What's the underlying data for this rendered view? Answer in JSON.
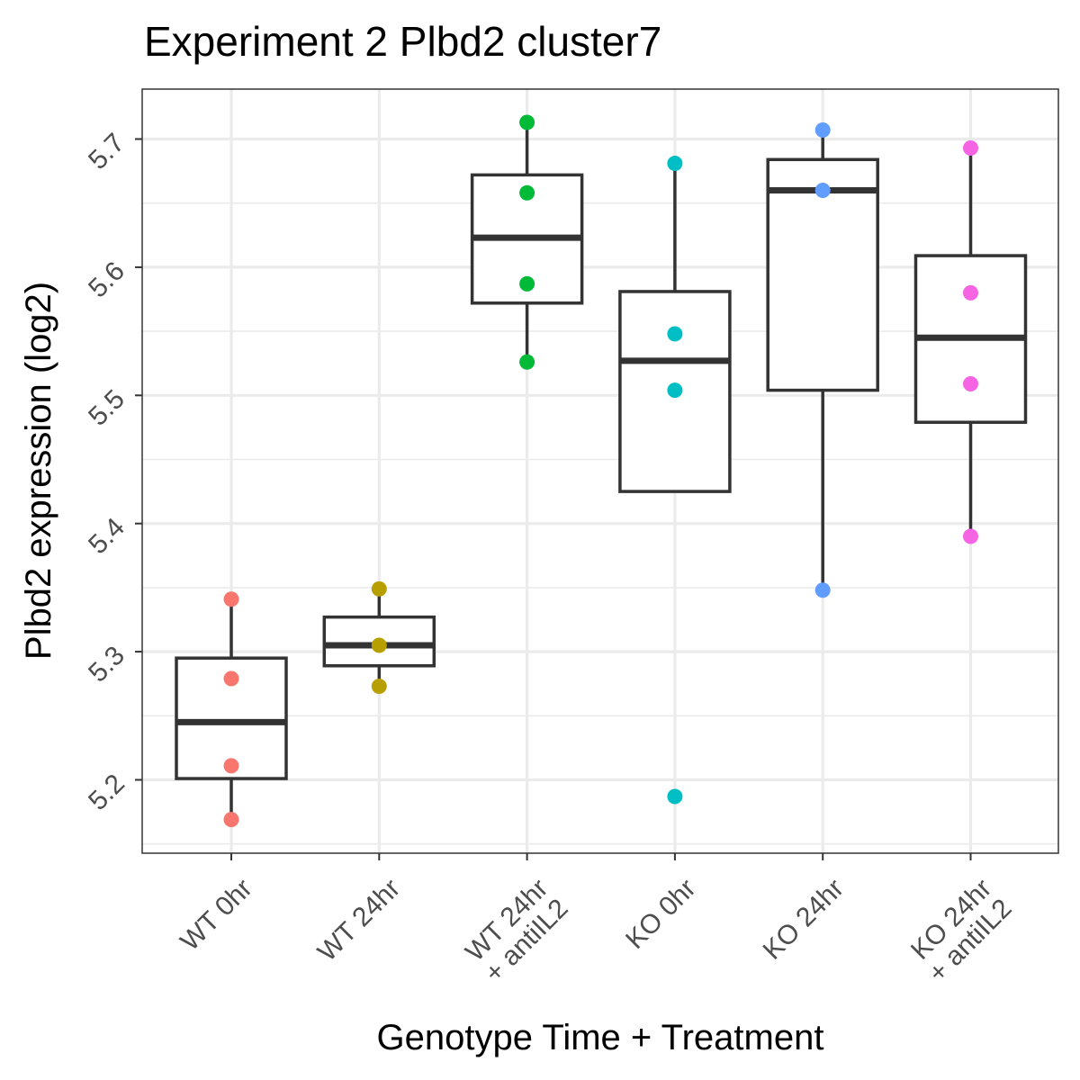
{
  "chart_data": {
    "type": "box",
    "title": "Experiment 2 Plbd2 cluster7",
    "xlabel": "Genotype Time + Treatment",
    "ylabel": "Plbd2 expression (log2)",
    "ylim": [
      5.14,
      5.74
    ],
    "y_ticks": [
      5.2,
      5.3,
      5.4,
      5.5,
      5.6,
      5.7
    ],
    "y_tick_labels": [
      "5.2",
      "5.3",
      "5.4",
      "5.5",
      "5.6",
      "5.7"
    ],
    "grid": true,
    "legend": "none",
    "categories": [
      [
        "WT 0hr"
      ],
      [
        "WT 24hr"
      ],
      [
        "WT 24hr",
        "+ antiIL2"
      ],
      [
        "KO 0hr"
      ],
      [
        "KO 24hr"
      ],
      [
        "KO 24hr",
        "+ antiIL2"
      ]
    ],
    "groups": [
      {
        "color": "#F8766D",
        "box": {
          "lower_whisker": 5.17,
          "q1": 5.201,
          "median": 5.245,
          "q3": 5.295,
          "upper_whisker": 5.341
        },
        "points": [
          5.341,
          5.279,
          5.211,
          5.169
        ]
      },
      {
        "color": "#B79F00",
        "box": {
          "lower_whisker": 5.273,
          "q1": 5.289,
          "median": 5.305,
          "q3": 5.327,
          "upper_whisker": 5.349
        },
        "points": [
          5.349,
          5.305,
          5.273
        ]
      },
      {
        "color": "#00BA38",
        "box": {
          "lower_whisker": 5.526,
          "q1": 5.572,
          "median": 5.623,
          "q3": 5.672,
          "upper_whisker": 5.713
        },
        "points": [
          5.713,
          5.658,
          5.587,
          5.526
        ]
      },
      {
        "color": "#00BFC4",
        "box": {
          "lower_whisker": 5.425,
          "q1": 5.425,
          "median": 5.527,
          "q3": 5.581,
          "upper_whisker": 5.681
        },
        "points": [
          5.681,
          5.548,
          5.504,
          5.187
        ],
        "outliers": [
          5.187
        ]
      },
      {
        "color": "#619CFF",
        "box": {
          "lower_whisker": 5.348,
          "q1": 5.504,
          "median": 5.66,
          "q3": 5.684,
          "upper_whisker": 5.707
        },
        "points": [
          5.707,
          5.66,
          5.348
        ]
      },
      {
        "color": "#F564E3",
        "box": {
          "lower_whisker": 5.39,
          "q1": 5.479,
          "median": 5.545,
          "q3": 5.609,
          "upper_whisker": 5.693
        },
        "points": [
          5.693,
          5.58,
          5.509,
          5.39
        ]
      }
    ]
  }
}
